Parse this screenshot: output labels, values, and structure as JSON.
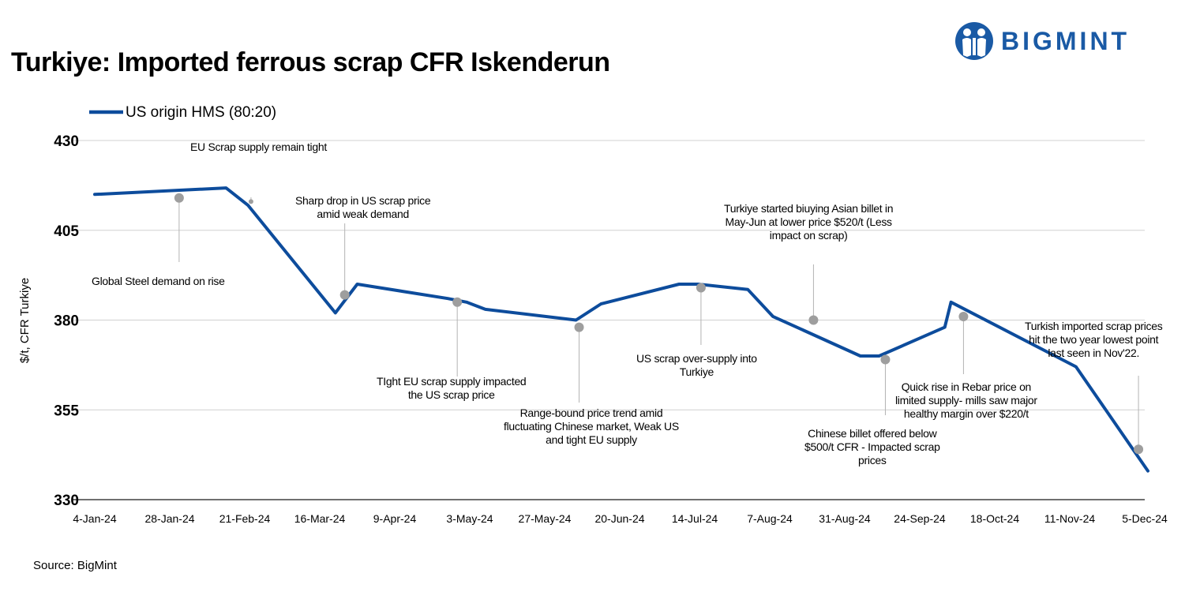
{
  "title": "Turkiye: Imported ferrous scrap CFR Iskenderun",
  "brand": {
    "name": "BIGMINT",
    "color": "#1a5aa5"
  },
  "source": "Source: BigMint",
  "chart_data": {
    "type": "line",
    "ylabel": "$/t, CFR Turkiye",
    "xlabel": "",
    "ylim": [
      330,
      430
    ],
    "yticks": [
      330,
      355,
      380,
      405,
      430
    ],
    "grid": true,
    "legend_position": "top-left",
    "x_tick_labels": [
      "4-Jan-24",
      "28-Jan-24",
      "21-Feb-24",
      "16-Mar-24",
      "9-Apr-24",
      "3-May-24",
      "27-May-24",
      "20-Jun-24",
      "14-Jul-24",
      "7-Aug-24",
      "31-Aug-24",
      "24-Sep-24",
      "18-Oct-24",
      "11-Nov-24",
      "5-Dec-24"
    ],
    "series": [
      {
        "name": "US origin HMS (80:20)",
        "color": "#0d4c9c",
        "points": [
          [
            "2024-01-04",
            415
          ],
          [
            "2024-02-15",
            416.8
          ],
          [
            "2024-02-22",
            412
          ],
          [
            "2024-03-21",
            382
          ],
          [
            "2024-03-28",
            390
          ],
          [
            "2024-04-26",
            386
          ],
          [
            "2024-05-02",
            385
          ],
          [
            "2024-05-08",
            383
          ],
          [
            "2024-06-06",
            380
          ],
          [
            "2024-06-14",
            384.5
          ],
          [
            "2024-07-09",
            390
          ],
          [
            "2024-07-15",
            390
          ],
          [
            "2024-07-31",
            388.5
          ],
          [
            "2024-08-08",
            381
          ],
          [
            "2024-09-05",
            370
          ],
          [
            "2024-09-11",
            370
          ],
          [
            "2024-10-02",
            378
          ],
          [
            "2024-10-04",
            385
          ],
          [
            "2024-11-13",
            367
          ],
          [
            "2024-12-06",
            338
          ]
        ]
      }
    ],
    "annotations": [
      {
        "text": [
          "EU Scrap supply remain tight"
        ]
      },
      {
        "text": [
          "Global Steel demand on rise"
        ]
      },
      {
        "text": [
          "Sharp drop in US scrap price",
          "amid weak demand"
        ]
      },
      {
        "text": [
          "TIght EU scrap supply impacted",
          "the US scrap price"
        ]
      },
      {
        "text": [
          "Range-bound price trend amid",
          "fluctuating Chinese market, Weak US",
          "and tight EU supply"
        ]
      },
      {
        "text": [
          "US scrap over-supply into",
          "Turkiye"
        ]
      },
      {
        "text": [
          "Turkiye started biuying Asian billet in",
          "May-Jun at lower price $520/t (Less",
          "impact on scrap)"
        ]
      },
      {
        "text": [
          "Chinese billet offered below",
          "$500/t CFR - Impacted scrap",
          "prices"
        ]
      },
      {
        "text": [
          "Quick rise in Rebar price on",
          "limited supply- mills saw major",
          "healthy margin over $220/t"
        ]
      },
      {
        "text": [
          "Turkish imported scrap prices",
          "hit the two year lowest point",
          "last seen in Nov'22."
        ]
      }
    ]
  }
}
